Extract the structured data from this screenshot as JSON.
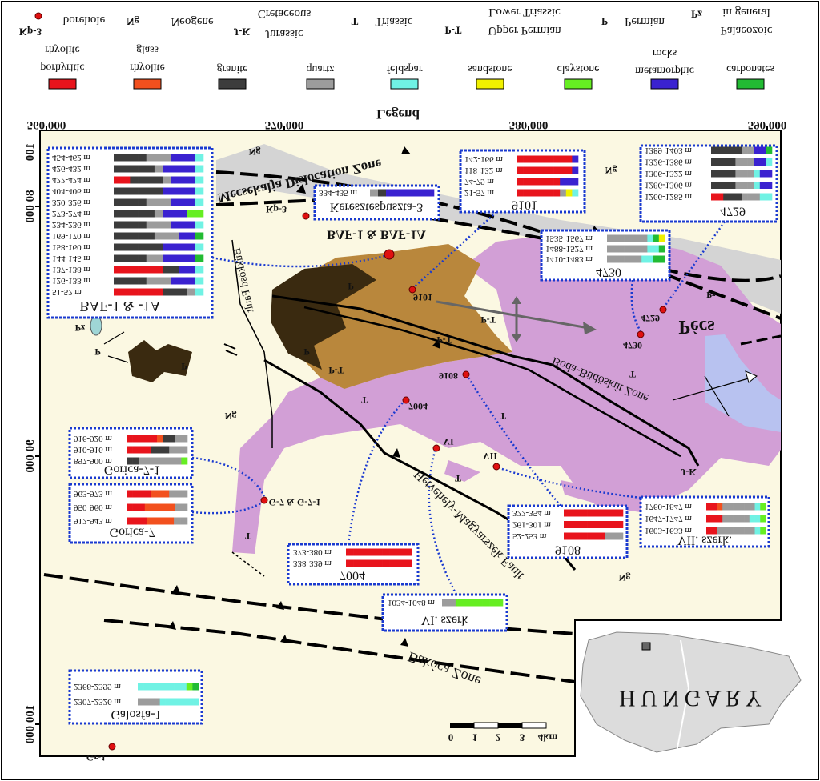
{
  "legend": {
    "title": "Legend",
    "symbols": [
      {
        "symbol": "Kp-3",
        "lines": [
          "borehole"
        ]
      },
      {
        "symbol": "Ng",
        "lines": [
          "Neogene"
        ]
      },
      {
        "symbol": "J-K",
        "lines": [
          "Jurassic",
          "Cretaceous"
        ]
      },
      {
        "symbol": "T",
        "lines": [
          "Triassic"
        ]
      },
      {
        "symbol": "P-T",
        "lines": [
          "Upper Permian",
          "Lower Triassic"
        ]
      },
      {
        "symbol": "P",
        "lines": [
          "Permian"
        ]
      },
      {
        "symbol": "Pz",
        "lines": [
          "Palaeozoic",
          "in general"
        ]
      }
    ],
    "rocks": [
      {
        "lines": [
          "porhyritic",
          "rhyolite"
        ],
        "color": "#e8141c"
      },
      {
        "lines": [
          "rhyolite",
          "glass"
        ],
        "color": "#f2501e"
      },
      {
        "lines": [
          "granite"
        ],
        "color": "#3c3c3c"
      },
      {
        "lines": [
          "quartz"
        ],
        "color": "#9c9c9c"
      },
      {
        "lines": [
          "feldspar"
        ],
        "color": "#70f2e4"
      },
      {
        "lines": [
          "sandstone"
        ],
        "color": "#f0f000"
      },
      {
        "lines": [
          "claystone"
        ],
        "color": "#66ee22"
      },
      {
        "lines": [
          "metamorphic",
          "rocks"
        ],
        "color": "#3a22d0"
      },
      {
        "lines": [
          "carbonates"
        ],
        "color": "#22bb33"
      }
    ]
  },
  "coordinates": {
    "x": [
      "560 000",
      "570 000",
      "580 000",
      "590 000"
    ],
    "y": [
      "100",
      "80 000",
      "90 000",
      "100 000"
    ]
  },
  "map_labels": [
    "Mecsekalja Dislocation Zone",
    "Kp-3",
    "BAF-1 & BAF-1A",
    "Ng",
    "Ng",
    "Ng",
    "Ng",
    "P",
    "P",
    "P",
    "P",
    "Pz",
    "P-T",
    "P-T",
    "P-T",
    "T",
    "T",
    "T",
    "T",
    "T",
    "Pécs",
    "9101",
    "4729",
    "4730",
    "9108",
    "7004",
    "VI",
    "VII",
    "G-7 & G-7-1",
    "Gr-1",
    "Pz",
    "J-K",
    "Bükkösd Fault",
    "Boda-Büdöskút Zone",
    "Hetvehely-Magyarszék Fault",
    "Bakóca Zone"
  ],
  "boreholes": [
    {
      "title": "BAF-1 & -1A",
      "rows": [
        "51-52 m",
        "126-133 m",
        "137-138 m",
        "144-145 m",
        "158-160 m",
        "169-170 m",
        "234-236 m",
        "273-274 m",
        "320-326 m",
        "404-406 m",
        "422-424 m",
        "426-432 m",
        "454-462 m"
      ]
    },
    {
      "title": "9101",
      "rows": [
        "21-57 m",
        "74-79 m",
        "118-132 m",
        "142-166 m"
      ]
    },
    {
      "title": "Keresztespuszta-3",
      "rows": [
        "334-435 m"
      ]
    },
    {
      "title": "4729",
      "rows": [
        "1266-1285 m",
        "1286-1306 m",
        "1306-1322 m",
        "1326-1386 m",
        "1389-1403 m"
      ]
    },
    {
      "title": "4730",
      "rows": [
        "1410-1483 m",
        "1488-1527 m",
        "1535-1567 m"
      ]
    },
    {
      "title": "Gorica-7-1",
      "rows": [
        "897-900 m",
        "910-916 m",
        "916-920 m"
      ]
    },
    {
      "title": "Gorica-7",
      "rows": [
        "912-943 m",
        "950-960 m",
        "963-973 m"
      ]
    },
    {
      "title": "7004",
      "rows": [
        "338-339 m",
        "373-380 m"
      ]
    },
    {
      "title": "9108",
      "rows": [
        "52-253 m",
        "261-301 m",
        "322-354 m"
      ]
    },
    {
      "title": "VII. szerk.",
      "rows": [
        "1603-1633 m",
        "1647-1747 m",
        "1760-1847 m"
      ]
    },
    {
      "title": "VI. szerk",
      "rows": [
        "1034-1048 m"
      ]
    },
    {
      "title": "Galosfa-1",
      "rows": [
        "2307-2326 m",
        "2368-2399 m"
      ]
    }
  ],
  "scale": [
    "0",
    "1",
    "2",
    "3",
    "4km"
  ],
  "inset": "H U N G A R Y"
}
